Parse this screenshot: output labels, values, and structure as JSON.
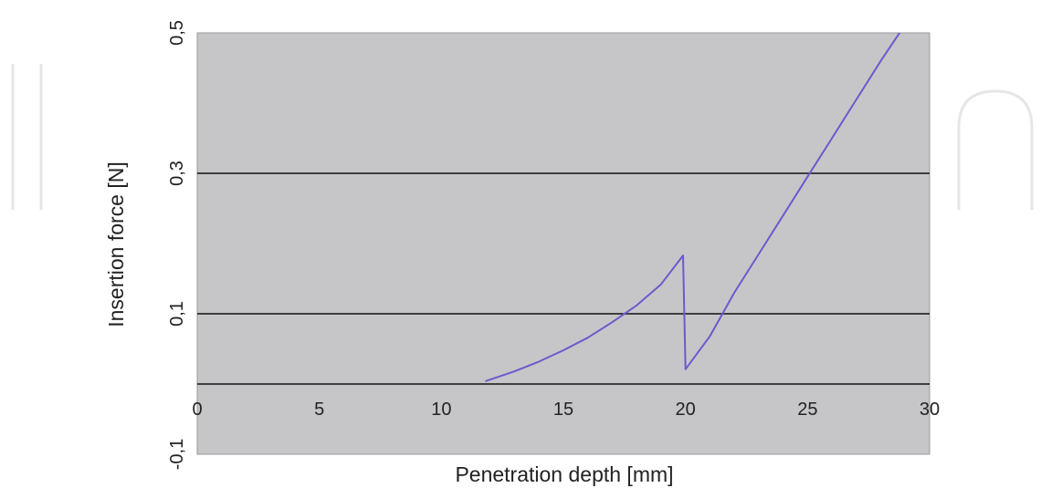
{
  "chart_data": {
    "type": "line",
    "title": "",
    "xlabel": "Penetration depth [mm]",
    "ylabel": "Insertion force [N]",
    "xlim": [
      0,
      30
    ],
    "ylim": [
      -0.1,
      0.5
    ],
    "x_ticks": [
      {
        "value": 0,
        "label": "0"
      },
      {
        "value": 5,
        "label": "5"
      },
      {
        "value": 10,
        "label": "10"
      },
      {
        "value": 15,
        "label": "15"
      },
      {
        "value": 20,
        "label": "20"
      },
      {
        "value": 25,
        "label": "25"
      },
      {
        "value": 30,
        "label": "30"
      }
    ],
    "y_ticks": [
      {
        "value": -0.1,
        "label": "-0,1"
      },
      {
        "value": 0.1,
        "label": "0,1"
      },
      {
        "value": 0.3,
        "label": "0,3"
      },
      {
        "value": 0.5,
        "label": "0,5"
      }
    ],
    "gridlines_y": [
      0,
      0.1,
      0.3
    ],
    "grid": true,
    "legend": "none",
    "background_color": "#c6c6c8",
    "gridline_color": "#111111",
    "series": [
      {
        "color": "#6a5acd",
        "points": [
          [
            11.8,
            0.004
          ],
          [
            13,
            0.018
          ],
          [
            14,
            0.032
          ],
          [
            15,
            0.048
          ],
          [
            16,
            0.066
          ],
          [
            17,
            0.088
          ],
          [
            18,
            0.112
          ],
          [
            19,
            0.142
          ],
          [
            19.9,
            0.183
          ],
          [
            20.0,
            0.021
          ],
          [
            21,
            0.068
          ],
          [
            22,
            0.13
          ],
          [
            23,
            0.185
          ],
          [
            24,
            0.24
          ],
          [
            25,
            0.295
          ],
          [
            26,
            0.35
          ],
          [
            27,
            0.405
          ],
          [
            28,
            0.46
          ],
          [
            29,
            0.512
          ],
          [
            30,
            0.562
          ]
        ]
      }
    ]
  }
}
